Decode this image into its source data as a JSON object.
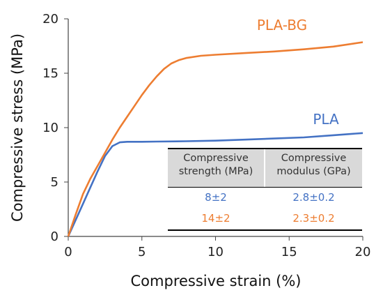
{
  "chart_data": {
    "type": "line",
    "xlabel": "Compressive strain (%)",
    "ylabel": "Compressive stress (MPa)",
    "xlim": [
      0,
      20
    ],
    "ylim": [
      0,
      20
    ],
    "x_ticks": [
      "0",
      "5",
      "10",
      "15",
      "20"
    ],
    "y_ticks": [
      "0",
      "5",
      "10",
      "15",
      "20"
    ],
    "grid": false,
    "series": [
      {
        "name": "PLA",
        "color": "#4472C4",
        "x": [
          0,
          0.5,
          1.0,
          1.5,
          2.0,
          2.5,
          3.0,
          3.5,
          4.0,
          5.0,
          6.0,
          8.0,
          10.0,
          12.0,
          14.0,
          16.0,
          18.0,
          20.0
        ],
        "y": [
          0,
          1.5,
          3.0,
          4.5,
          6.0,
          7.4,
          8.3,
          8.65,
          8.7,
          8.7,
          8.72,
          8.75,
          8.8,
          8.9,
          9.0,
          9.1,
          9.3,
          9.5
        ]
      },
      {
        "name": "PLA-BG",
        "color": "#ED7D31",
        "x": [
          0,
          0.5,
          1.0,
          1.5,
          2.0,
          2.5,
          3.0,
          3.5,
          4.0,
          4.5,
          5.0,
          5.5,
          6.0,
          6.5,
          7.0,
          7.5,
          8.0,
          9.0,
          10.0,
          12.0,
          14.0,
          16.0,
          18.0,
          20.0
        ],
        "y": [
          0,
          2.0,
          3.9,
          5.3,
          6.5,
          7.7,
          8.9,
          10.0,
          11.0,
          12.0,
          13.0,
          13.9,
          14.7,
          15.4,
          15.9,
          16.2,
          16.4,
          16.6,
          16.7,
          16.85,
          17.0,
          17.2,
          17.45,
          17.85
        ]
      }
    ],
    "inset_table": {
      "headers": [
        [
          "Compressive",
          "strength (MPa)"
        ],
        [
          "Compressive",
          "modulus (GPa)"
        ]
      ],
      "rows": [
        {
          "values": [
            "8±2",
            "2.8±0.2"
          ],
          "color": "#4472C4"
        },
        {
          "values": [
            "14±2",
            "2.3±0.2"
          ],
          "color": "#ED7D31"
        }
      ]
    }
  }
}
